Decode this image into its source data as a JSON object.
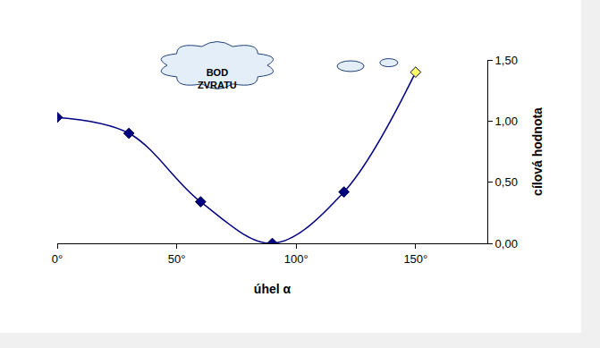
{
  "chart_data": {
    "type": "line",
    "x": [
      0,
      30,
      60,
      90,
      120,
      150
    ],
    "values": [
      1.03,
      0.9,
      0.34,
      0,
      0.42,
      1.4
    ],
    "color": "#000080",
    "colors": [
      "#000080",
      "#000080",
      "#000080",
      "#000080",
      "#000080",
      "#ffff66"
    ],
    "marker": "diamond",
    "line_style": "smooth",
    "xlabel": "úhel α",
    "ylabel": "cílová hodnota",
    "annotations": [
      {
        "text": "BOD ZVRATU"
      }
    ],
    "xlim": [
      0,
      180
    ],
    "xticks": [
      {
        "value": 0,
        "label": "0°"
      },
      {
        "value": 50,
        "label": "50°"
      },
      {
        "value": 100,
        "label": "100°"
      },
      {
        "value": 150,
        "label": "150°"
      }
    ],
    "ylim": [
      0,
      1.5
    ],
    "yticks": [
      {
        "value": 0,
        "label": "0,00"
      },
      {
        "value": 0.5,
        "label": "0,50"
      },
      {
        "value": 1,
        "label": "1,00"
      },
      {
        "value": 1.5,
        "label": "1,50"
      }
    ],
    "grid": false
  }
}
